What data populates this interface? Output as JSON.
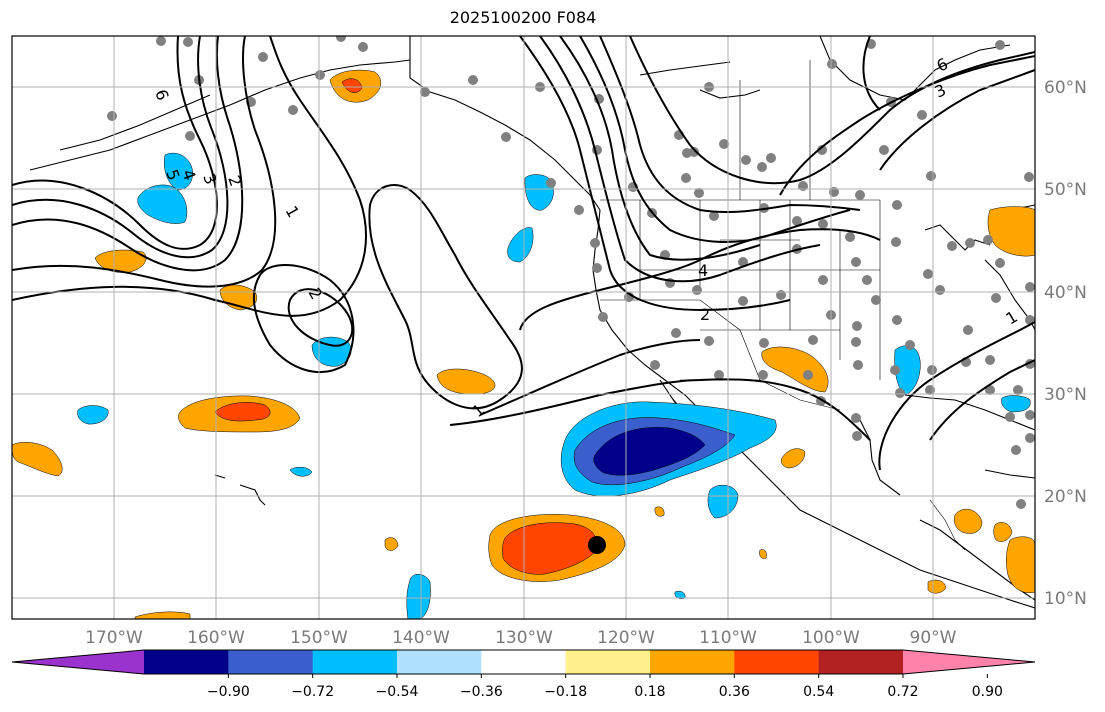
{
  "title": "2025100200 F084",
  "lon_labels": [
    "170°W",
    "160°W",
    "150°W",
    "140°W",
    "130°W",
    "120°W",
    "110°W",
    "100°W",
    "90°W"
  ],
  "lat_labels": [
    "60°N",
    "50°N",
    "40°N",
    "30°N",
    "20°N",
    "10°N"
  ],
  "colorbar": {
    "colors": [
      "#9a32cd",
      "#00008b",
      "#3a5fcd",
      "#00bfff",
      "#b0e2ff",
      "#ffffff",
      "#fff08c",
      "#ffa500",
      "#ff4500",
      "#b22222",
      "#ff82ab"
    ],
    "tick_labels": [
      "−0.90",
      "−0.72",
      "−0.54",
      "−0.36",
      "−0.18",
      "0.18",
      "0.36",
      "0.54",
      "0.72",
      "0.90"
    ]
  },
  "contour_labels": {
    "one_a": "1",
    "one_b": "1",
    "one_c": "1",
    "two_a": "2",
    "two_b": "2",
    "two_c": "2",
    "three_a": "3",
    "three_b": "3",
    "four_a": "4",
    "four_b": "4",
    "five": "5",
    "six_a": "6",
    "six_b": "6"
  },
  "colors": {
    "land_outline": "#000000",
    "grid": "#b0b0b0",
    "station": "#808080",
    "marker": "#000000"
  }
}
